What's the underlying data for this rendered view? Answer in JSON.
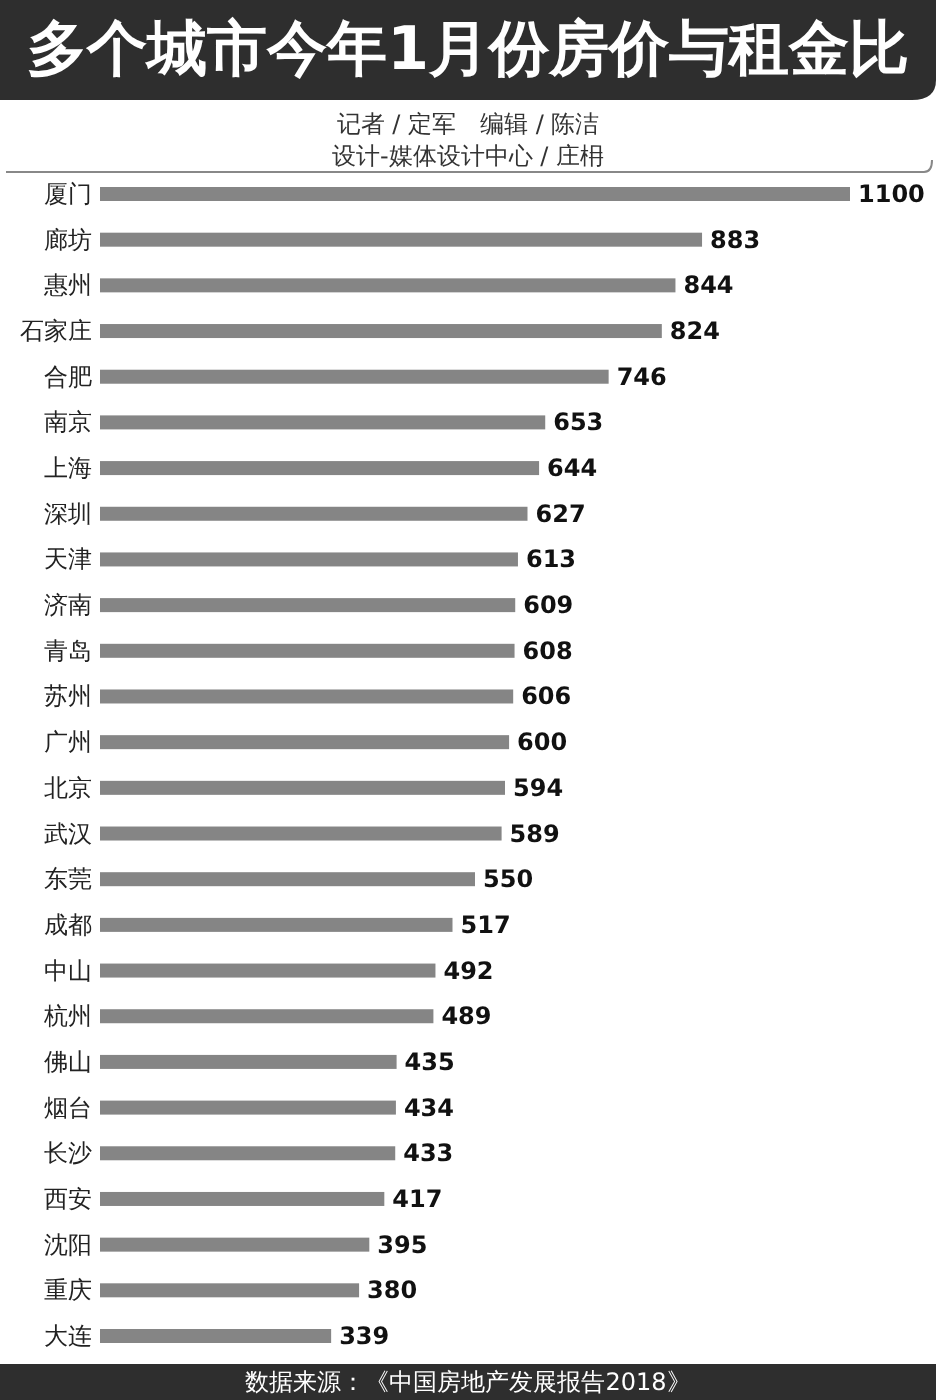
{
  "chart_data": {
    "type": "bar",
    "orientation": "horizontal",
    "title": "多个城市今年1月份房价与租金比",
    "subtitle": "记者 / 定军　编辑 / 陈洁",
    "categories": [
      "厦门",
      "廊坊",
      "惠州",
      "石家庄",
      "合肥",
      "南京",
      "上海",
      "深圳",
      "天津",
      "济南",
      "青岛",
      "苏州",
      "广州",
      "北京",
      "武汉",
      "东莞",
      "成都",
      "中山",
      "杭州",
      "佛山",
      "烟台",
      "长沙",
      "西安",
      "沈阳",
      "重庆",
      "大连"
    ],
    "values": [
      1100,
      883,
      844,
      824,
      746,
      653,
      644,
      627,
      613,
      609,
      608,
      606,
      600,
      594,
      589,
      550,
      517,
      492,
      489,
      435,
      434,
      433,
      417,
      395,
      380,
      339
    ],
    "color": "#858585",
    "data_labels": true,
    "annotations": [
      "设计-媒体设计中心 / 庄枏",
      "数据来源：《中国房地产发展报告2018》"
    ]
  }
}
